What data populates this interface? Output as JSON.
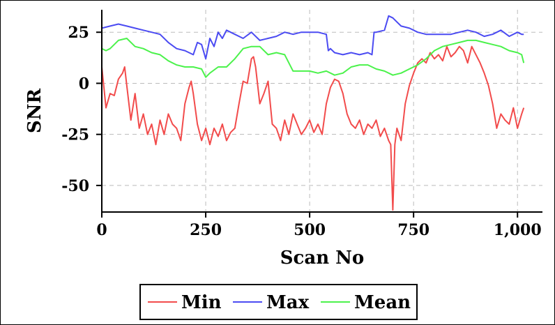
{
  "chart_data": {
    "type": "line",
    "title": "",
    "xlabel": "Scan No",
    "ylabel": "SNR",
    "xlim": [
      0,
      1060
    ],
    "ylim": [
      -63,
      36
    ],
    "x_ticks": [
      0,
      250,
      500,
      750,
      1000
    ],
    "x_tick_labels": [
      "0",
      "250",
      "500",
      "750",
      "1,000"
    ],
    "y_ticks": [
      -50,
      -25,
      0,
      25
    ],
    "y_tick_labels": [
      "-50",
      "-25",
      "0",
      "25"
    ],
    "grid": true,
    "legend_position": "bottom-center",
    "series": [
      {
        "name": "Min",
        "color": "#f24b4b",
        "x": [
          0,
          10,
          20,
          30,
          40,
          50,
          55,
          60,
          70,
          80,
          90,
          100,
          110,
          120,
          130,
          140,
          150,
          160,
          170,
          180,
          190,
          200,
          210,
          215,
          220,
          230,
          240,
          250,
          260,
          270,
          280,
          290,
          300,
          310,
          320,
          330,
          340,
          350,
          360,
          365,
          370,
          380,
          390,
          400,
          410,
          420,
          430,
          440,
          450,
          460,
          470,
          480,
          490,
          500,
          510,
          520,
          530,
          540,
          550,
          560,
          570,
          580,
          590,
          600,
          610,
          620,
          630,
          640,
          650,
          660,
          670,
          680,
          690,
          695,
          700,
          705,
          710,
          720,
          730,
          740,
          750,
          760,
          770,
          780,
          790,
          800,
          810,
          820,
          830,
          840,
          850,
          860,
          870,
          880,
          890,
          900,
          910,
          920,
          930,
          940,
          950,
          960,
          970,
          980,
          990,
          1000,
          1010,
          1015
        ],
        "y": [
          8,
          -12,
          -5,
          -6,
          2,
          5,
          8,
          -1,
          -18,
          -5,
          -22,
          -15,
          -25,
          -20,
          -30,
          -18,
          -25,
          -15,
          -20,
          -22,
          -28,
          -10,
          -2,
          1,
          -5,
          -20,
          -28,
          -22,
          -30,
          -22,
          -26,
          -20,
          -28,
          -24,
          -22,
          -10,
          1,
          0,
          12,
          13,
          8,
          -10,
          -5,
          1,
          -20,
          -22,
          -28,
          -18,
          -25,
          -15,
          -20,
          -25,
          -22,
          -18,
          -24,
          -20,
          -25,
          -10,
          -2,
          2,
          1,
          -5,
          -15,
          -20,
          -22,
          -18,
          -25,
          -20,
          -22,
          -18,
          -26,
          -22,
          -28,
          -30,
          -62,
          -30,
          -22,
          -28,
          -10,
          -1,
          5,
          10,
          12,
          10,
          15,
          12,
          14,
          11,
          18,
          13,
          15,
          18,
          16,
          10,
          18,
          14,
          10,
          5,
          -1,
          -10,
          -22,
          -15,
          -18,
          -20,
          -12,
          -22,
          -15,
          -12
        ]
      },
      {
        "name": "Max",
        "color": "#4b4bf2",
        "x": [
          0,
          20,
          40,
          60,
          80,
          100,
          120,
          140,
          160,
          180,
          200,
          220,
          230,
          240,
          250,
          260,
          270,
          280,
          290,
          300,
          320,
          340,
          360,
          380,
          400,
          420,
          440,
          460,
          480,
          500,
          520,
          540,
          545,
          550,
          560,
          580,
          600,
          620,
          640,
          650,
          655,
          660,
          680,
          690,
          700,
          710,
          720,
          740,
          760,
          780,
          800,
          820,
          840,
          860,
          880,
          900,
          920,
          940,
          960,
          980,
          1000,
          1010,
          1015
        ],
        "y": [
          27,
          28,
          29,
          28,
          27,
          26,
          25,
          24,
          20,
          17,
          16,
          14,
          20,
          19,
          12,
          22,
          18,
          25,
          22,
          26,
          24,
          22,
          25,
          21,
          22,
          23,
          25,
          24,
          25,
          25,
          25,
          24,
          16,
          17,
          15,
          14,
          15,
          14,
          15,
          14,
          25,
          25,
          26,
          33,
          32,
          30,
          28,
          27,
          25,
          24,
          24,
          24,
          24,
          25,
          26,
          25,
          23,
          24,
          26,
          23,
          25,
          24,
          24
        ]
      },
      {
        "name": "Mean",
        "color": "#4bf24b",
        "x": [
          0,
          10,
          20,
          40,
          60,
          80,
          100,
          120,
          140,
          160,
          180,
          200,
          220,
          240,
          250,
          260,
          280,
          300,
          320,
          340,
          360,
          380,
          400,
          420,
          440,
          460,
          480,
          500,
          520,
          540,
          560,
          580,
          600,
          620,
          640,
          660,
          680,
          700,
          720,
          740,
          760,
          780,
          800,
          820,
          840,
          860,
          880,
          900,
          920,
          940,
          960,
          980,
          1000,
          1010,
          1015
        ],
        "y": [
          17,
          16,
          17,
          21,
          22,
          18,
          17,
          15,
          14,
          11,
          9,
          8,
          8,
          7,
          3,
          5,
          8,
          8,
          12,
          17,
          18,
          18,
          14,
          15,
          14,
          6,
          6,
          6,
          5,
          6,
          4,
          5,
          8,
          9,
          9,
          7,
          6,
          4,
          5,
          7,
          9,
          12,
          16,
          18,
          19,
          20,
          21,
          21,
          20,
          19,
          18,
          16,
          15,
          14,
          10
        ]
      }
    ]
  }
}
